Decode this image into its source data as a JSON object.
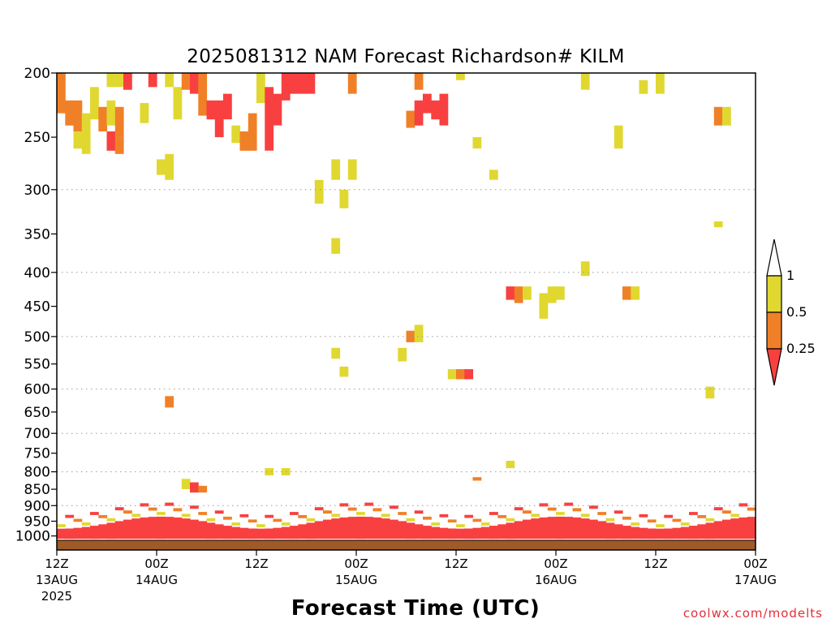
{
  "chart_data": {
    "type": "heatmap",
    "title": "2025081312 NAM Forecast Richardson# KILM",
    "xlabel": "Forecast Time (UTC)",
    "credit": "coolwx.com/modelts",
    "y_axis": {
      "label": "",
      "scale": "log",
      "reversed": true,
      "ylim": [
        200,
        1050
      ],
      "ticks": [
        200,
        250,
        300,
        350,
        400,
        450,
        500,
        550,
        600,
        650,
        700,
        750,
        800,
        850,
        900,
        950,
        1000
      ],
      "gridlines": [
        300,
        400,
        500,
        600,
        700,
        800,
        900
      ]
    },
    "x_axis": {
      "xlim": [
        "2025-08-13 12Z",
        "2025-08-17 00Z"
      ],
      "ticks": [
        {
          "h": 0,
          "top": "12Z",
          "bottom": "13AUG",
          "extra": "2025"
        },
        {
          "h": 12,
          "top": "00Z",
          "bottom": "14AUG",
          "extra": ""
        },
        {
          "h": 24,
          "top": "12Z",
          "bottom": "",
          "extra": ""
        },
        {
          "h": 36,
          "top": "00Z",
          "bottom": "15AUG",
          "extra": ""
        },
        {
          "h": 48,
          "top": "12Z",
          "bottom": "",
          "extra": ""
        },
        {
          "h": 60,
          "top": "00Z",
          "bottom": "16AUG",
          "extra": ""
        },
        {
          "h": 72,
          "top": "12Z",
          "bottom": "",
          "extra": ""
        },
        {
          "h": 84,
          "top": "00Z",
          "bottom": "17AUG",
          "extra": ""
        }
      ]
    },
    "colorbar": {
      "levels": [
        "0.25",
        "0.5",
        "1"
      ],
      "bins": [
        {
          "range": "< 0.25",
          "color": "#f84040"
        },
        {
          "range": "0.25-0.5",
          "color": "#f08028"
        },
        {
          "range": "0.5-1",
          "color": "#e0d830"
        },
        {
          "range": "> 1",
          "color": "#ffffff"
        }
      ]
    },
    "colors": {
      "red": "#f84040",
      "orange": "#f08028",
      "yellow": "#e0d830",
      "ground": "#a05a28"
    },
    "cells": [
      [
        "2025-08-13 12Z",
        200,
        230,
        "orange"
      ],
      [
        "2025-08-13 13Z",
        220,
        240,
        "orange"
      ],
      [
        "2025-08-13 14Z",
        220,
        245,
        "orange"
      ],
      [
        "2025-08-13 14Z",
        245,
        260,
        "yellow"
      ],
      [
        "2025-08-13 15Z",
        230,
        265,
        "yellow"
      ],
      [
        "2025-08-13 16Z",
        210,
        235,
        "yellow"
      ],
      [
        "2025-08-13 17Z",
        225,
        245,
        "orange"
      ],
      [
        "2025-08-13 18Z",
        220,
        240,
        "yellow"
      ],
      [
        "2025-08-13 18Z",
        245,
        262,
        "red"
      ],
      [
        "2025-08-13 19Z",
        225,
        250,
        "orange"
      ],
      [
        "2025-08-13 19Z",
        250,
        265,
        "orange"
      ],
      [
        "2025-08-13 18Z",
        200,
        210,
        "yellow"
      ],
      [
        "2025-08-13 19Z",
        200,
        210,
        "yellow"
      ],
      [
        "2025-08-13 20Z",
        200,
        212,
        "red"
      ],
      [
        "2025-08-13 22Z",
        222,
        238,
        "yellow"
      ],
      [
        "2025-08-13 23Z",
        200,
        210,
        "red"
      ],
      [
        "2025-08-14 00Z",
        270,
        285,
        "yellow"
      ],
      [
        "2025-08-14 01Z",
        265,
        290,
        "yellow"
      ],
      [
        "2025-08-14 01Z",
        200,
        210,
        "yellow"
      ],
      [
        "2025-08-14 02Z",
        210,
        235,
        "yellow"
      ],
      [
        "2025-08-14 03Z",
        200,
        212,
        "orange"
      ],
      [
        "2025-08-14 04Z",
        200,
        215,
        "red"
      ],
      [
        "2025-08-14 05Z",
        200,
        232,
        "orange"
      ],
      [
        "2025-08-14 06Z",
        220,
        235,
        "red"
      ],
      [
        "2025-08-14 07Z",
        220,
        250,
        "red"
      ],
      [
        "2025-08-14 08Z",
        215,
        235,
        "red"
      ],
      [
        "2025-08-14 09Z",
        240,
        255,
        "yellow"
      ],
      [
        "2025-08-14 10Z",
        245,
        262,
        "orange"
      ],
      [
        "2025-08-14 11Z",
        230,
        262,
        "orange"
      ],
      [
        "2025-08-14 12Z",
        200,
        222,
        "yellow"
      ],
      [
        "2025-08-14 13Z",
        210,
        262,
        "red"
      ],
      [
        "2025-08-14 14Z",
        215,
        240,
        "red"
      ],
      [
        "2025-08-14 15Z",
        200,
        220,
        "red"
      ],
      [
        "2025-08-14 16Z",
        200,
        215,
        "red"
      ],
      [
        "2025-08-14 17Z",
        200,
        215,
        "red"
      ],
      [
        "2025-08-14 18Z",
        200,
        215,
        "red"
      ],
      [
        "2025-08-14 19Z",
        290,
        315,
        "yellow"
      ],
      [
        "2025-08-14 21Z",
        270,
        290,
        "yellow"
      ],
      [
        "2025-08-14 21Z",
        355,
        375,
        "yellow"
      ],
      [
        "2025-08-14 22Z",
        300,
        320,
        "yellow"
      ],
      [
        "2025-08-14 23Z",
        200,
        215,
        "orange"
      ],
      [
        "2025-08-14 23Z",
        270,
        290,
        "yellow"
      ],
      [
        "2025-08-15 07Z",
        200,
        212,
        "orange"
      ],
      [
        "2025-08-15 06Z",
        228,
        242,
        "orange"
      ],
      [
        "2025-08-15 07Z",
        220,
        240,
        "red"
      ],
      [
        "2025-08-15 08Z",
        215,
        230,
        "red"
      ],
      [
        "2025-08-15 09Z",
        220,
        235,
        "red"
      ],
      [
        "2025-08-15 10Z",
        215,
        240,
        "red"
      ],
      [
        "2025-08-15 12Z",
        200,
        205,
        "yellow"
      ],
      [
        "2025-08-15 14Z",
        250,
        260,
        "yellow"
      ],
      [
        "2025-08-15 16Z",
        280,
        290,
        "yellow"
      ],
      [
        "2025-08-16 03Z",
        200,
        212,
        "yellow"
      ],
      [
        "2025-08-16 07Z",
        240,
        260,
        "yellow"
      ],
      [
        "2025-08-16 10Z",
        205,
        215,
        "yellow"
      ],
      [
        "2025-08-16 12Z",
        200,
        215,
        "yellow"
      ],
      [
        "2025-08-16 19Z",
        225,
        240,
        "orange"
      ],
      [
        "2025-08-16 20Z",
        225,
        240,
        "yellow"
      ],
      [
        "2025-08-16 19Z",
        335,
        342,
        "yellow"
      ],
      [
        "2025-08-15 18Z",
        420,
        440,
        "red"
      ],
      [
        "2025-08-15 19Z",
        420,
        445,
        "orange"
      ],
      [
        "2025-08-15 20Z",
        420,
        440,
        "yellow"
      ],
      [
        "2025-08-15 22Z",
        430,
        470,
        "yellow"
      ],
      [
        "2025-08-15 23Z",
        420,
        445,
        "yellow"
      ],
      [
        "2025-08-16 00Z",
        420,
        440,
        "yellow"
      ],
      [
        "2025-08-16 03Z",
        385,
        405,
        "yellow"
      ],
      [
        "2025-08-16 08Z",
        420,
        440,
        "orange"
      ],
      [
        "2025-08-16 09Z",
        420,
        440,
        "yellow"
      ],
      [
        "2025-08-15 06Z",
        490,
        510,
        "orange"
      ],
      [
        "2025-08-15 07Z",
        480,
        510,
        "yellow"
      ],
      [
        "2025-08-15 05Z",
        520,
        545,
        "yellow"
      ],
      [
        "2025-08-14 21Z",
        520,
        540,
        "yellow"
      ],
      [
        "2025-08-14 22Z",
        555,
        575,
        "yellow"
      ],
      [
        "2025-08-15 11Z",
        560,
        580,
        "yellow"
      ],
      [
        "2025-08-15 12Z",
        560,
        580,
        "orange"
      ],
      [
        "2025-08-15 13Z",
        560,
        580,
        "red"
      ],
      [
        "2025-08-16 18Z",
        595,
        620,
        "yellow"
      ],
      [
        "2025-08-14 01Z",
        615,
        640,
        "orange"
      ],
      [
        "2025-08-15 18Z",
        770,
        790,
        "yellow"
      ],
      [
        "2025-08-14 13Z",
        790,
        810,
        "yellow"
      ],
      [
        "2025-08-14 15Z",
        790,
        810,
        "yellow"
      ],
      [
        "2025-08-15 14Z",
        815,
        825,
        "orange"
      ],
      [
        "2025-08-14 03Z",
        820,
        850,
        "yellow"
      ],
      [
        "2025-08-14 04Z",
        830,
        860,
        "red"
      ],
      [
        "2025-08-14 05Z",
        840,
        860,
        "orange"
      ]
    ]
  }
}
